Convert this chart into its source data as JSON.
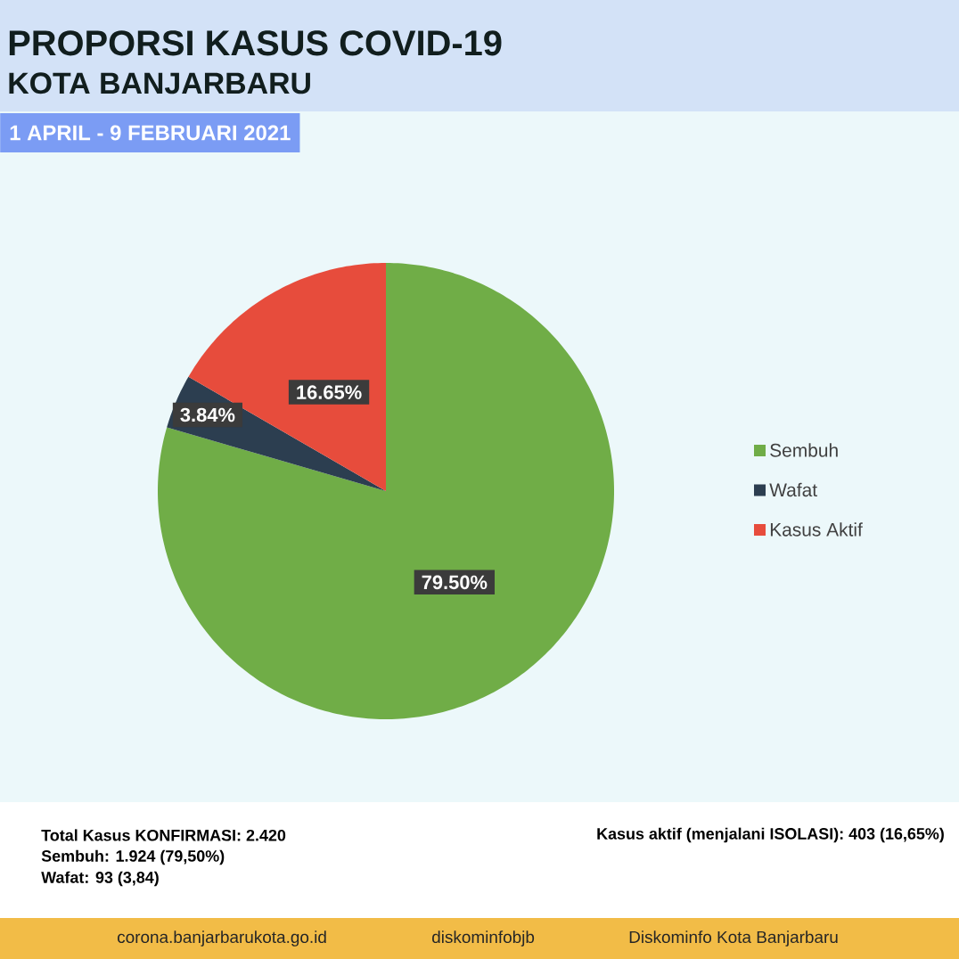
{
  "chart_data": {
    "type": "pie",
    "title": "PROPORSI KASUS COVID-19",
    "subtitle": "KOTA BANJARBARU",
    "categories": [
      "Sembuh",
      "Wafat",
      "Kasus Aktif"
    ],
    "values": [
      79.5,
      3.84,
      16.65
    ],
    "colors": [
      "#70ad47",
      "#2c3e50",
      "#e74c3c"
    ],
    "value_labels": [
      "79.50%",
      "3.84%",
      "16.65%"
    ],
    "legend": "right",
    "annotations": [
      "1 APRIL - 9 FEBRUARI 2021",
      "Total Kasus KONFIRMASI: 2.420",
      "Sembuh: 1.924 (79,50%)",
      "Wafat: 93 (3,84)",
      "Kasus aktif (menjalani ISOLASI): 403 (16,65%)",
      "corona.banjarbarukota.go.id",
      "diskominfobjb",
      "Diskominfo Kota Banjarbaru"
    ]
  }
}
